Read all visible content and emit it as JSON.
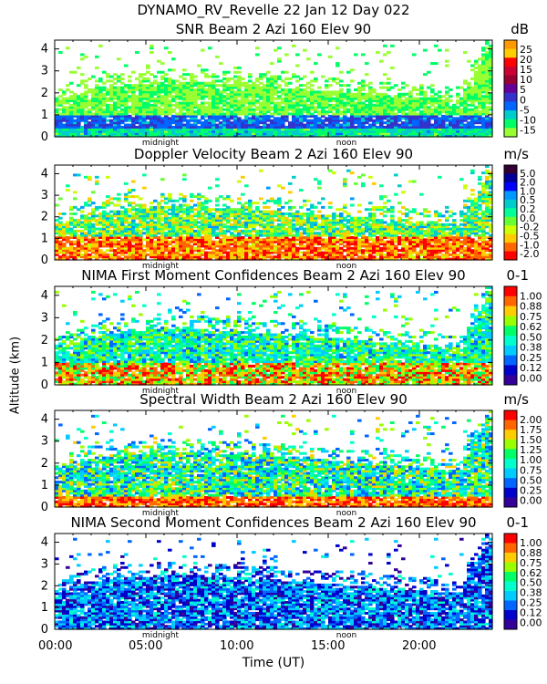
{
  "figure": {
    "title": "DYNAMO_RV_Revelle  22 Jan 12 Day 022",
    "ylabel": "Altitude (km)",
    "xlabel": "Time (UT)",
    "x_ticks": [
      "00:00",
      "05:00",
      "10:00",
      "15:00",
      "20:00"
    ],
    "markers": {
      "midnight": "midnight",
      "noon": "noon"
    }
  },
  "chart_data": [
    {
      "type": "heatmap",
      "title": "SNR Beam 2 Azi 160 Elev 90",
      "unit": "dB",
      "xlim": [
        0,
        24
      ],
      "ylim": [
        0,
        4.4
      ],
      "y_ticks": [
        0,
        1,
        2,
        3,
        4
      ],
      "colorbar_labels": [
        "25",
        "20",
        "15",
        "10",
        "5",
        "0",
        "-5",
        "-10",
        "-15"
      ],
      "colorbar_colors": [
        "#ff9900",
        "#ffcc00",
        "#ff0000",
        "#cc0033",
        "#990033",
        "#660099",
        "#3333cc",
        "#0066ff",
        "#00cccc",
        "#00ff66",
        "#99ff33"
      ]
    },
    {
      "type": "heatmap",
      "title": "Doppler Velocity Beam 2 Azi 160 Elev 90",
      "unit": "m/s",
      "xlim": [
        0,
        24
      ],
      "ylim": [
        0,
        4.4
      ],
      "y_ticks": [
        0,
        1,
        2,
        3,
        4
      ],
      "colorbar_labels": [
        "5.0",
        "2.0",
        "1.0",
        "0.5",
        "0.2",
        "0.0",
        "-0.2",
        "-0.5",
        "-1.0",
        "-2.0"
      ],
      "colorbar_colors": [
        "#330033",
        "#000099",
        "#0000ff",
        "#0099ff",
        "#00cccc",
        "#00ff99",
        "#66ff33",
        "#ccff00",
        "#ffcc00",
        "#ff6600",
        "#ff0000"
      ]
    },
    {
      "type": "heatmap",
      "title": "NIMA First Moment Confidences Beam 2 Azi 160 Elev 90",
      "unit": "0-1",
      "xlim": [
        0,
        24
      ],
      "ylim": [
        0,
        4.4
      ],
      "y_ticks": [
        0,
        1,
        2,
        3,
        4
      ],
      "colorbar_labels": [
        "1.00",
        "0.88",
        "0.75",
        "0.62",
        "0.50",
        "0.38",
        "0.25",
        "0.12",
        "0.00"
      ],
      "colorbar_colors": [
        "#ff0000",
        "#ff6600",
        "#ffcc00",
        "#99ff00",
        "#00ff66",
        "#00ffcc",
        "#00ccff",
        "#0066ff",
        "#0000cc",
        "#330099"
      ]
    },
    {
      "type": "heatmap",
      "title": "Spectral Width Beam 2 Azi 160 Elev 90",
      "unit": "m/s",
      "xlim": [
        0,
        24
      ],
      "ylim": [
        0,
        4.4
      ],
      "y_ticks": [
        0,
        1,
        2,
        3,
        4
      ],
      "colorbar_labels": [
        "2.00",
        "1.75",
        "1.50",
        "1.25",
        "1.00",
        "0.75",
        "0.50",
        "0.25",
        "0.00"
      ],
      "colorbar_colors": [
        "#ff0000",
        "#ff6600",
        "#ffcc00",
        "#99ff00",
        "#00ff66",
        "#00ffcc",
        "#00ccff",
        "#0066ff",
        "#0000cc",
        "#330099"
      ]
    },
    {
      "type": "heatmap",
      "title": "NIMA Second Moment Confidences Beam 2 Azi 160 Elev 90",
      "unit": "0-1",
      "xlim": [
        0,
        24
      ],
      "ylim": [
        0,
        4.4
      ],
      "y_ticks": [
        0,
        1,
        2,
        3,
        4
      ],
      "colorbar_labels": [
        "1.00",
        "0.88",
        "0.75",
        "0.62",
        "0.50",
        "0.38",
        "0.25",
        "0.12",
        "0.00"
      ],
      "colorbar_colors": [
        "#ff0000",
        "#ff6600",
        "#ffcc00",
        "#99ff00",
        "#00ff66",
        "#00ffcc",
        "#00ccff",
        "#0066ff",
        "#0000cc",
        "#330099"
      ]
    }
  ]
}
